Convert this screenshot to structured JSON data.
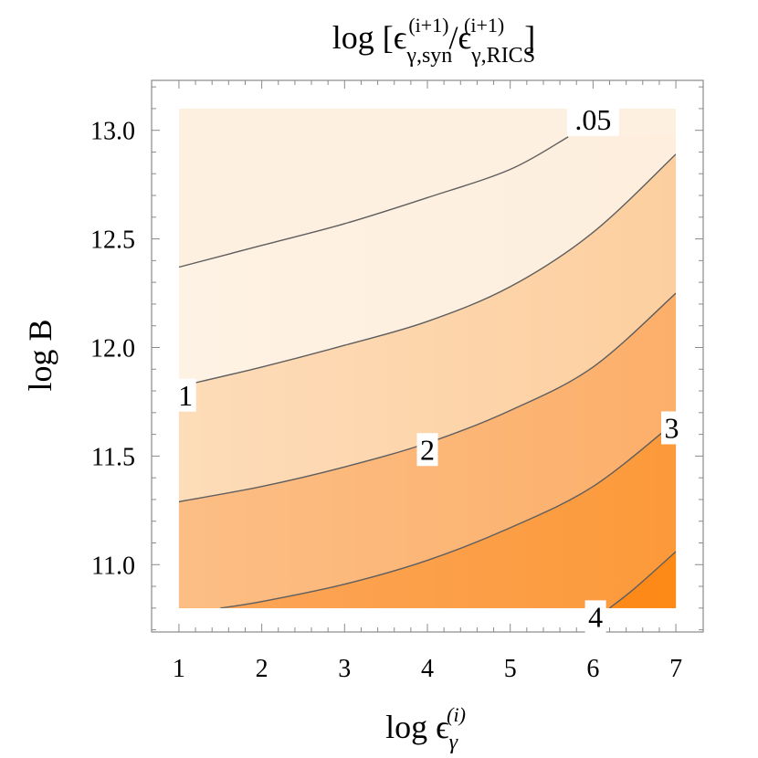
{
  "chart_data": {
    "type": "heatmap",
    "subtype": "filled-contour",
    "title": {
      "prefix": "log [",
      "num": "ϵ",
      "sub1": "γ,syn",
      "slash": "/",
      "den": "ϵ",
      "sub2": "γ,RICS",
      "sup": "(i+1)",
      "suffix": "]"
    },
    "xlabel": {
      "prefix": "log ",
      "base": "ϵ",
      "sub": "γ",
      "sup": "(i)"
    },
    "ylabel": "log B",
    "xlim": [
      0.67,
      7.33
    ],
    "ylim": [
      10.69,
      13.23
    ],
    "data_x_range": [
      1,
      7
    ],
    "data_y_range": [
      10.8,
      13.1
    ],
    "x_ticks": [
      "1",
      "2",
      "3",
      "4",
      "5",
      "6",
      "7"
    ],
    "y_ticks": [
      "11.0",
      "11.5",
      "12.0",
      "12.5",
      "13.0"
    ],
    "x_tick_values": [
      1,
      2,
      3,
      4,
      5,
      6,
      7
    ],
    "y_tick_values": [
      11.0,
      11.5,
      12.0,
      12.5,
      13.0
    ],
    "grid": false,
    "frame": true,
    "contour_fill_colors": [
      "#fef0e1",
      "#fdd3a8",
      "#fcb271",
      "#fc9835",
      "#fd8a17",
      "#fe7f00"
    ],
    "contour_line_color": "#5e5e5e",
    "contours": [
      {
        "label": ".05",
        "level": 0.05,
        "points": [
          [
            1,
            12.37
          ],
          [
            2,
            12.47
          ],
          [
            3,
            12.57
          ],
          [
            4,
            12.69
          ],
          [
            5,
            12.82
          ],
          [
            5.7,
            12.97
          ]
        ]
      },
      {
        "label": "1",
        "level": 1,
        "points": [
          [
            1,
            11.82
          ],
          [
            2,
            11.91
          ],
          [
            3,
            12.01
          ],
          [
            4,
            12.12
          ],
          [
            5,
            12.28
          ],
          [
            6,
            12.53
          ],
          [
            7,
            12.89
          ]
        ]
      },
      {
        "label": "2",
        "level": 2,
        "points": [
          [
            1,
            11.29
          ],
          [
            2,
            11.36
          ],
          [
            3,
            11.45
          ],
          [
            4,
            11.56
          ],
          [
            5,
            11.71
          ],
          [
            6,
            11.91
          ],
          [
            7,
            12.25
          ]
        ]
      },
      {
        "label": "3",
        "level": 3,
        "points": [
          [
            1.5,
            10.8
          ],
          [
            2,
            10.83
          ],
          [
            3,
            10.91
          ],
          [
            4,
            11.02
          ],
          [
            5,
            11.17
          ],
          [
            6,
            11.36
          ],
          [
            7,
            11.66
          ]
        ]
      },
      {
        "label": "4",
        "level": 4,
        "points": [
          [
            6.2,
            10.8
          ],
          [
            6.5,
            10.89
          ],
          [
            7,
            11.06
          ]
        ]
      }
    ],
    "contour_labels": [
      {
        "text": ".05",
        "x": 6.0,
        "y": 13.05
      },
      {
        "text": "1",
        "x": 1.08,
        "y": 11.78
      },
      {
        "text": "2",
        "x": 4.0,
        "y": 11.53
      },
      {
        "text": "3",
        "x": 6.95,
        "y": 11.63
      },
      {
        "text": "4",
        "x": 6.03,
        "y": 10.76
      }
    ]
  }
}
